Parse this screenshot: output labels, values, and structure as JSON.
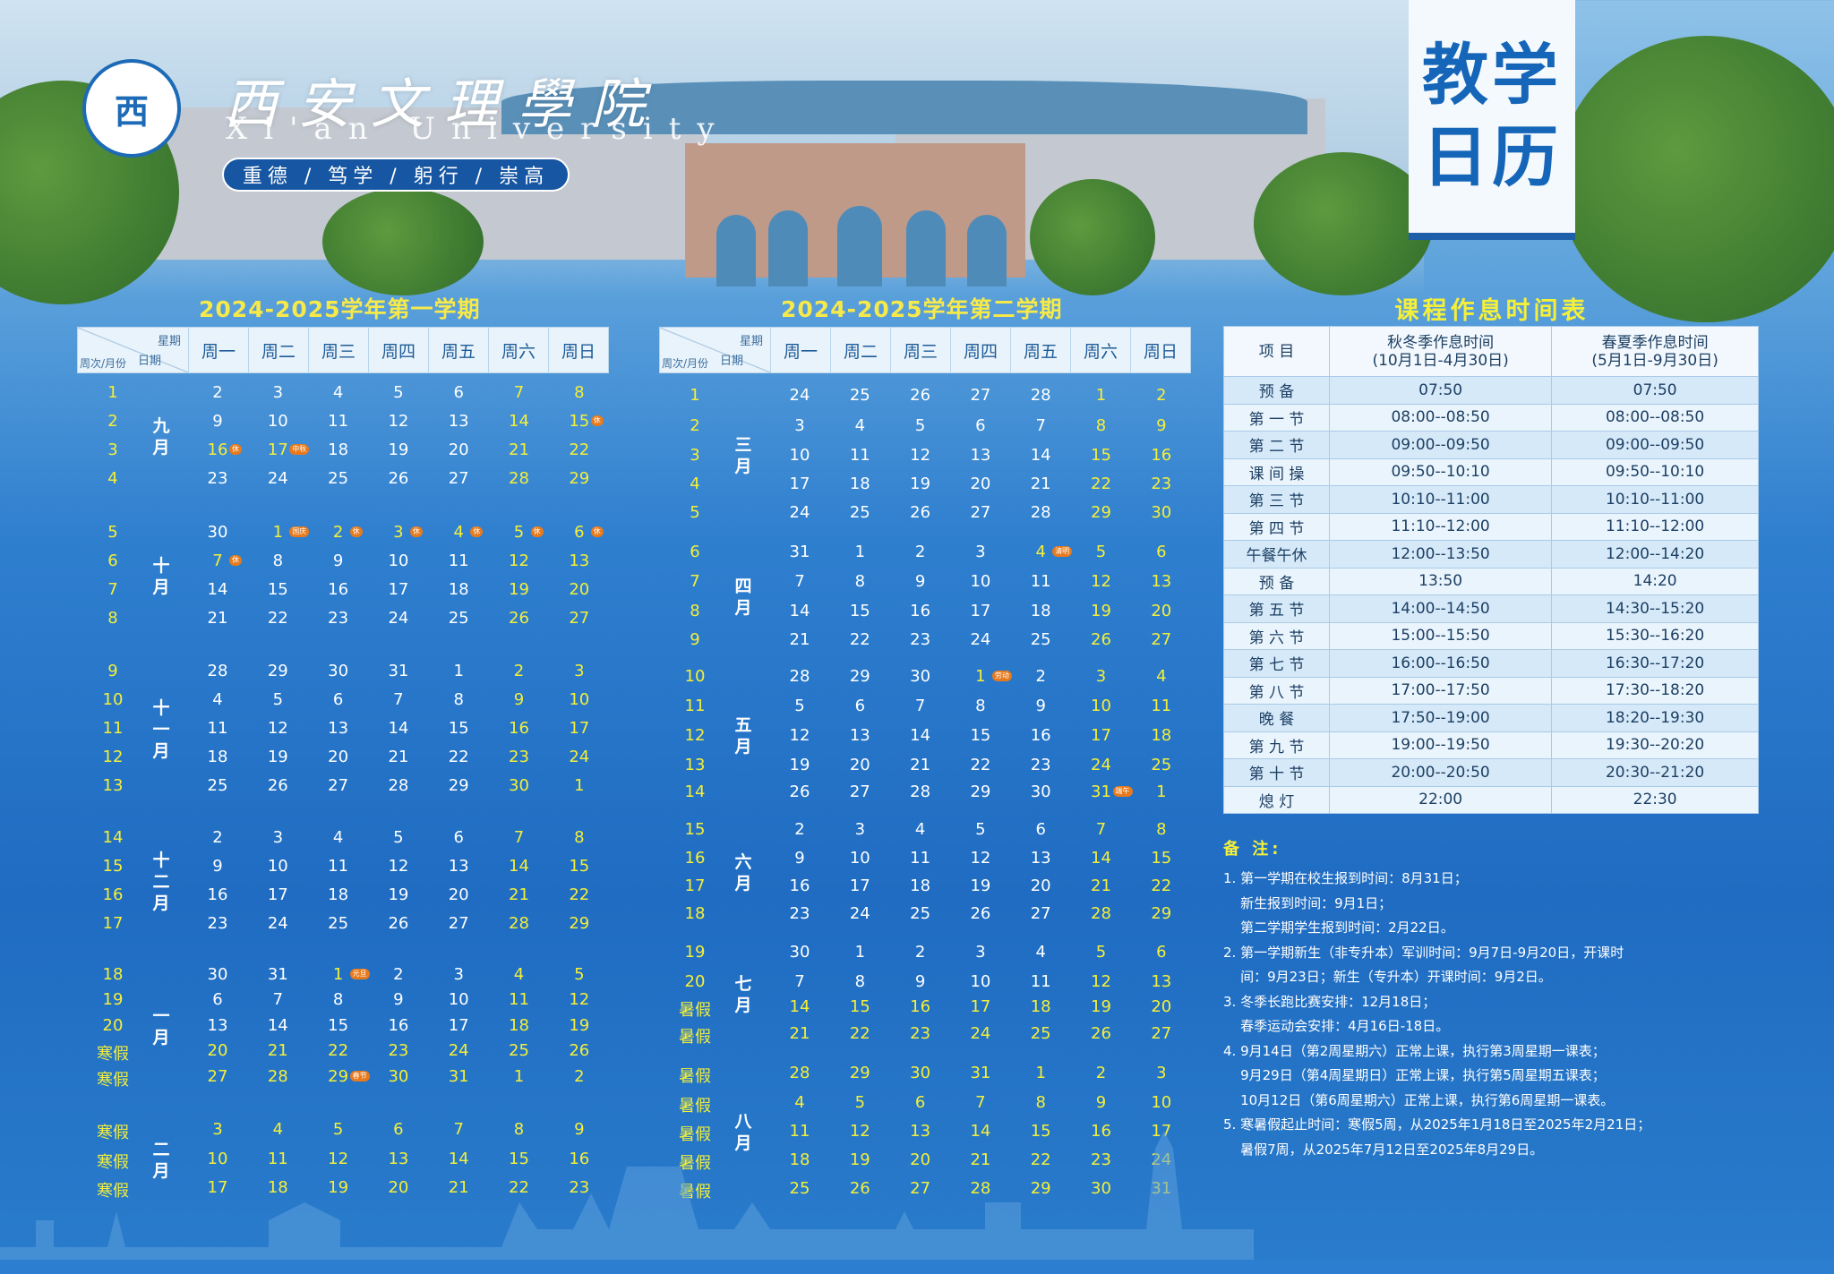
{
  "header": {
    "school_name": "西安文理學院",
    "school_en": "Xi'an University",
    "motto": "重德 / 笃学 / 躬行 / 崇高",
    "logo_text": "西",
    "title_line1": "教学",
    "title_line2": "日历"
  },
  "sem1": {
    "title": "2024-2025学年第一学期",
    "corner_top": "星期",
    "corner_mid": "日期",
    "corner_bot": "周次/月份",
    "days": [
      "周一",
      "周二",
      "周三",
      "周四",
      "周五",
      "周六",
      "周日"
    ],
    "months": [
      {
        "label": "九月",
        "startRow": 0,
        "n": 4
      },
      {
        "label": "十月",
        "startRow": 4,
        "n": 4
      },
      {
        "label": "十一月",
        "startRow": 8,
        "n": 5
      },
      {
        "label": "十二月",
        "startRow": 13,
        "n": 4
      },
      {
        "label": "一月",
        "startRow": 17,
        "n": 5
      },
      {
        "label": "二月",
        "startRow": 22,
        "n": 3
      }
    ],
    "rows": [
      {
        "w": "1",
        "d": [
          "2",
          "3",
          "4",
          "5",
          "6",
          "7",
          "8"
        ]
      },
      {
        "w": "2",
        "d": [
          "9",
          "10",
          "11",
          "12",
          "13",
          "14",
          "15"
        ]
      },
      {
        "w": "3",
        "d": [
          "16",
          "17",
          "18",
          "19",
          "20",
          "21",
          "22"
        ]
      },
      {
        "w": "4",
        "d": [
          "23",
          "24",
          "25",
          "26",
          "27",
          "28",
          "29"
        ]
      },
      {
        "w": "5",
        "d": [
          "30",
          "1",
          "2",
          "3",
          "4",
          "5",
          "6"
        ]
      },
      {
        "w": "6",
        "d": [
          "7",
          "8",
          "9",
          "10",
          "11",
          "12",
          "13"
        ]
      },
      {
        "w": "7",
        "d": [
          "14",
          "15",
          "16",
          "17",
          "18",
          "19",
          "20"
        ]
      },
      {
        "w": "8",
        "d": [
          "21",
          "22",
          "23",
          "24",
          "25",
          "26",
          "27"
        ]
      },
      {
        "w": "9",
        "d": [
          "28",
          "29",
          "30",
          "31",
          "1",
          "2",
          "3"
        ]
      },
      {
        "w": "10",
        "d": [
          "4",
          "5",
          "6",
          "7",
          "8",
          "9",
          "10"
        ]
      },
      {
        "w": "11",
        "d": [
          "11",
          "12",
          "13",
          "14",
          "15",
          "16",
          "17"
        ]
      },
      {
        "w": "12",
        "d": [
          "18",
          "19",
          "20",
          "21",
          "22",
          "23",
          "24"
        ]
      },
      {
        "w": "13",
        "d": [
          "25",
          "26",
          "27",
          "28",
          "29",
          "30",
          "1"
        ]
      },
      {
        "w": "14",
        "d": [
          "2",
          "3",
          "4",
          "5",
          "6",
          "7",
          "8"
        ]
      },
      {
        "w": "15",
        "d": [
          "9",
          "10",
          "11",
          "12",
          "13",
          "14",
          "15"
        ]
      },
      {
        "w": "16",
        "d": [
          "16",
          "17",
          "18",
          "19",
          "20",
          "21",
          "22"
        ]
      },
      {
        "w": "17",
        "d": [
          "23",
          "24",
          "25",
          "26",
          "27",
          "28",
          "29"
        ]
      },
      {
        "w": "18",
        "d": [
          "30",
          "31",
          "1",
          "2",
          "3",
          "4",
          "5"
        ]
      },
      {
        "w": "19",
        "d": [
          "6",
          "7",
          "8",
          "9",
          "10",
          "11",
          "12"
        ]
      },
      {
        "w": "20",
        "d": [
          "13",
          "14",
          "15",
          "16",
          "17",
          "18",
          "19"
        ]
      },
      {
        "w": "寒假",
        "d": [
          "20",
          "21",
          "22",
          "23",
          "24",
          "25",
          "26"
        ]
      },
      {
        "w": "寒假",
        "d": [
          "27",
          "28",
          "29",
          "30",
          "31",
          "1",
          "2"
        ]
      },
      {
        "w": "寒假",
        "d": [
          "3",
          "4",
          "5",
          "6",
          "7",
          "8",
          "9"
        ]
      },
      {
        "w": "寒假",
        "d": [
          "10",
          "11",
          "12",
          "13",
          "14",
          "15",
          "16"
        ]
      },
      {
        "w": "寒假",
        "d": [
          "17",
          "18",
          "19",
          "20",
          "21",
          "22",
          "23"
        ]
      }
    ],
    "yellow_rows_all": [
      20,
      21,
      22,
      23
    ],
    "yellow_extra": [
      [
        4,
        1
      ],
      [
        4,
        2
      ],
      [
        4,
        3
      ],
      [
        4,
        4
      ],
      [
        4,
        5
      ],
      [
        5,
        0
      ],
      [
        2,
        0
      ],
      [
        2,
        1
      ],
      [
        17,
        2
      ],
      [
        21,
        2
      ],
      [
        24,
        0
      ],
      [
        24,
        1
      ],
      [
        24,
        2
      ],
      [
        24,
        3
      ],
      [
        24,
        4
      ]
    ],
    "tags": [
      {
        "r": 1,
        "c": 6,
        "t": "休"
      },
      {
        "r": 2,
        "c": 0,
        "t": "休"
      },
      {
        "r": 2,
        "c": 1,
        "t": "中秋"
      },
      {
        "r": 4,
        "c": 1,
        "t": "国庆"
      },
      {
        "r": 4,
        "c": 2,
        "t": "休"
      },
      {
        "r": 4,
        "c": 3,
        "t": "休"
      },
      {
        "r": 4,
        "c": 4,
        "t": "休"
      },
      {
        "r": 4,
        "c": 5,
        "t": "休"
      },
      {
        "r": 4,
        "c": 6,
        "t": "休"
      },
      {
        "r": 5,
        "c": 0,
        "t": "休"
      },
      {
        "r": 17,
        "c": 2,
        "t": "元旦"
      },
      {
        "r": 21,
        "c": 2,
        "t": "春节"
      }
    ]
  },
  "sem2": {
    "title": "2024-2025学年第二学期",
    "corner_top": "星期",
    "corner_mid": "日期",
    "corner_bot": "周次/月份",
    "days": [
      "周一",
      "周二",
      "周三",
      "周四",
      "周五",
      "周六",
      "周日"
    ],
    "months": [
      {
        "label": "三月",
        "startRow": 0,
        "n": 5
      },
      {
        "label": "四月",
        "startRow": 5,
        "n": 4
      },
      {
        "label": "五月",
        "startRow": 9,
        "n": 5
      },
      {
        "label": "六月",
        "startRow": 14,
        "n": 4
      },
      {
        "label": "七月",
        "startRow": 18,
        "n": 4
      },
      {
        "label": "八月",
        "startRow": 22,
        "n": 5
      }
    ],
    "rows": [
      {
        "w": "1",
        "d": [
          "24",
          "25",
          "26",
          "27",
          "28",
          "1",
          "2"
        ]
      },
      {
        "w": "2",
        "d": [
          "3",
          "4",
          "5",
          "6",
          "7",
          "8",
          "9"
        ]
      },
      {
        "w": "3",
        "d": [
          "10",
          "11",
          "12",
          "13",
          "14",
          "15",
          "16"
        ]
      },
      {
        "w": "4",
        "d": [
          "17",
          "18",
          "19",
          "20",
          "21",
          "22",
          "23"
        ]
      },
      {
        "w": "5",
        "d": [
          "24",
          "25",
          "26",
          "27",
          "28",
          "29",
          "30"
        ]
      },
      {
        "w": "6",
        "d": [
          "31",
          "1",
          "2",
          "3",
          "4",
          "5",
          "6"
        ]
      },
      {
        "w": "7",
        "d": [
          "7",
          "8",
          "9",
          "10",
          "11",
          "12",
          "13"
        ]
      },
      {
        "w": "8",
        "d": [
          "14",
          "15",
          "16",
          "17",
          "18",
          "19",
          "20"
        ]
      },
      {
        "w": "9",
        "d": [
          "21",
          "22",
          "23",
          "24",
          "25",
          "26",
          "27"
        ]
      },
      {
        "w": "10",
        "d": [
          "28",
          "29",
          "30",
          "1",
          "2",
          "3",
          "4"
        ]
      },
      {
        "w": "11",
        "d": [
          "5",
          "6",
          "7",
          "8",
          "9",
          "10",
          "11"
        ]
      },
      {
        "w": "12",
        "d": [
          "12",
          "13",
          "14",
          "15",
          "16",
          "17",
          "18"
        ]
      },
      {
        "w": "13",
        "d": [
          "19",
          "20",
          "21",
          "22",
          "23",
          "24",
          "25"
        ]
      },
      {
        "w": "14",
        "d": [
          "26",
          "27",
          "28",
          "29",
          "30",
          "31",
          "1"
        ]
      },
      {
        "w": "15",
        "d": [
          "2",
          "3",
          "4",
          "5",
          "6",
          "7",
          "8"
        ]
      },
      {
        "w": "16",
        "d": [
          "9",
          "10",
          "11",
          "12",
          "13",
          "14",
          "15"
        ]
      },
      {
        "w": "17",
        "d": [
          "16",
          "17",
          "18",
          "19",
          "20",
          "21",
          "22"
        ]
      },
      {
        "w": "18",
        "d": [
          "23",
          "24",
          "25",
          "26",
          "27",
          "28",
          "29"
        ]
      },
      {
        "w": "19",
        "d": [
          "30",
          "1",
          "2",
          "3",
          "4",
          "5",
          "6"
        ]
      },
      {
        "w": "20",
        "d": [
          "7",
          "8",
          "9",
          "10",
          "11",
          "12",
          "13"
        ]
      },
      {
        "w": "暑假",
        "d": [
          "14",
          "15",
          "16",
          "17",
          "18",
          "19",
          "20"
        ]
      },
      {
        "w": "暑假",
        "d": [
          "21",
          "22",
          "23",
          "24",
          "25",
          "26",
          "27"
        ]
      },
      {
        "w": "暑假",
        "d": [
          "28",
          "29",
          "30",
          "31",
          "1",
          "2",
          "3"
        ]
      },
      {
        "w": "暑假",
        "d": [
          "4",
          "5",
          "6",
          "7",
          "8",
          "9",
          "10"
        ]
      },
      {
        "w": "暑假",
        "d": [
          "11",
          "12",
          "13",
          "14",
          "15",
          "16",
          "17"
        ]
      },
      {
        "w": "暑假",
        "d": [
          "18",
          "19",
          "20",
          "21",
          "22",
          "23",
          "24"
        ]
      },
      {
        "w": "暑假",
        "d": [
          "25",
          "26",
          "27",
          "28",
          "29",
          "30",
          "31"
        ]
      }
    ],
    "yellow_rows_all": [
      20,
      21,
      22,
      23,
      24,
      25
    ],
    "yellow_extra": [
      [
        5,
        4
      ],
      [
        9,
        3
      ],
      [
        13,
        5
      ],
      [
        26,
        0
      ],
      [
        26,
        1
      ],
      [
        26,
        2
      ],
      [
        26,
        3
      ],
      [
        26,
        4
      ]
    ],
    "tags": [
      {
        "r": 5,
        "c": 4,
        "t": "清明"
      },
      {
        "r": 9,
        "c": 3,
        "t": "劳动"
      },
      {
        "r": 13,
        "c": 5,
        "t": "端午"
      }
    ]
  },
  "schedule": {
    "title": "课程作息时间表",
    "head": [
      "项  目",
      "秋冬季作息时间\n(10月1日-4月30日)",
      "春夏季作息时间\n(5月1日-9月30日)"
    ],
    "rows": [
      [
        "预  备",
        "07:50",
        "07:50"
      ],
      [
        "第 一 节",
        "08:00--08:50",
        "08:00--08:50"
      ],
      [
        "第 二 节",
        "09:00--09:50",
        "09:00--09:50"
      ],
      [
        "课 间 操",
        "09:50--10:10",
        "09:50--10:10"
      ],
      [
        "第 三 节",
        "10:10--11:00",
        "10:10--11:00"
      ],
      [
        "第 四 节",
        "11:10--12:00",
        "11:10--12:00"
      ],
      [
        "午餐午休",
        "12:00--13:50",
        "12:00--14:20"
      ],
      [
        "预  备",
        "13:50",
        "14:20"
      ],
      [
        "第 五 节",
        "14:00--14:50",
        "14:30--15:20"
      ],
      [
        "第 六 节",
        "15:00--15:50",
        "15:30--16:20"
      ],
      [
        "第 七 节",
        "16:00--16:50",
        "16:30--17:20"
      ],
      [
        "第 八 节",
        "17:00--17:50",
        "17:30--18:20"
      ],
      [
        "晚  餐",
        "17:50--19:00",
        "18:20--19:30"
      ],
      [
        "第 九 节",
        "19:00--19:50",
        "19:30--20:20"
      ],
      [
        "第 十 节",
        "20:00--20:50",
        "20:30--21:20"
      ],
      [
        "熄  灯",
        "22:00",
        "22:30"
      ]
    ]
  },
  "notes": {
    "title": "备 注:",
    "lines": [
      "1. 第一学期在校生报到时间：8月31日；",
      "    新生报到时间：9月1日；",
      "    第二学期学生报到时间：2月22日。",
      "2. 第一学期新生（非专升本）军训时间：9月7日-9月20日，开课时",
      "    间：9月23日；新生（专升本）开课时间：9月2日。",
      "3. 冬季长跑比赛安排：12月18日；",
      "    春季运动会安排：4月16日-18日。",
      "4. 9月14日（第2周星期六）正常上课，执行第3周星期一课表；",
      "    9月29日（第4周星期日）正常上课，执行第5周星期五课表；",
      "    10月12日（第6周星期六）正常上课，执行第6周星期一课表。",
      "5. 寒暑假起止时间：寒假5周，从2025年1月18日至2025年2月21日；",
      "    暑假7周，从2025年7月12日至2025年8月29日。"
    ]
  }
}
